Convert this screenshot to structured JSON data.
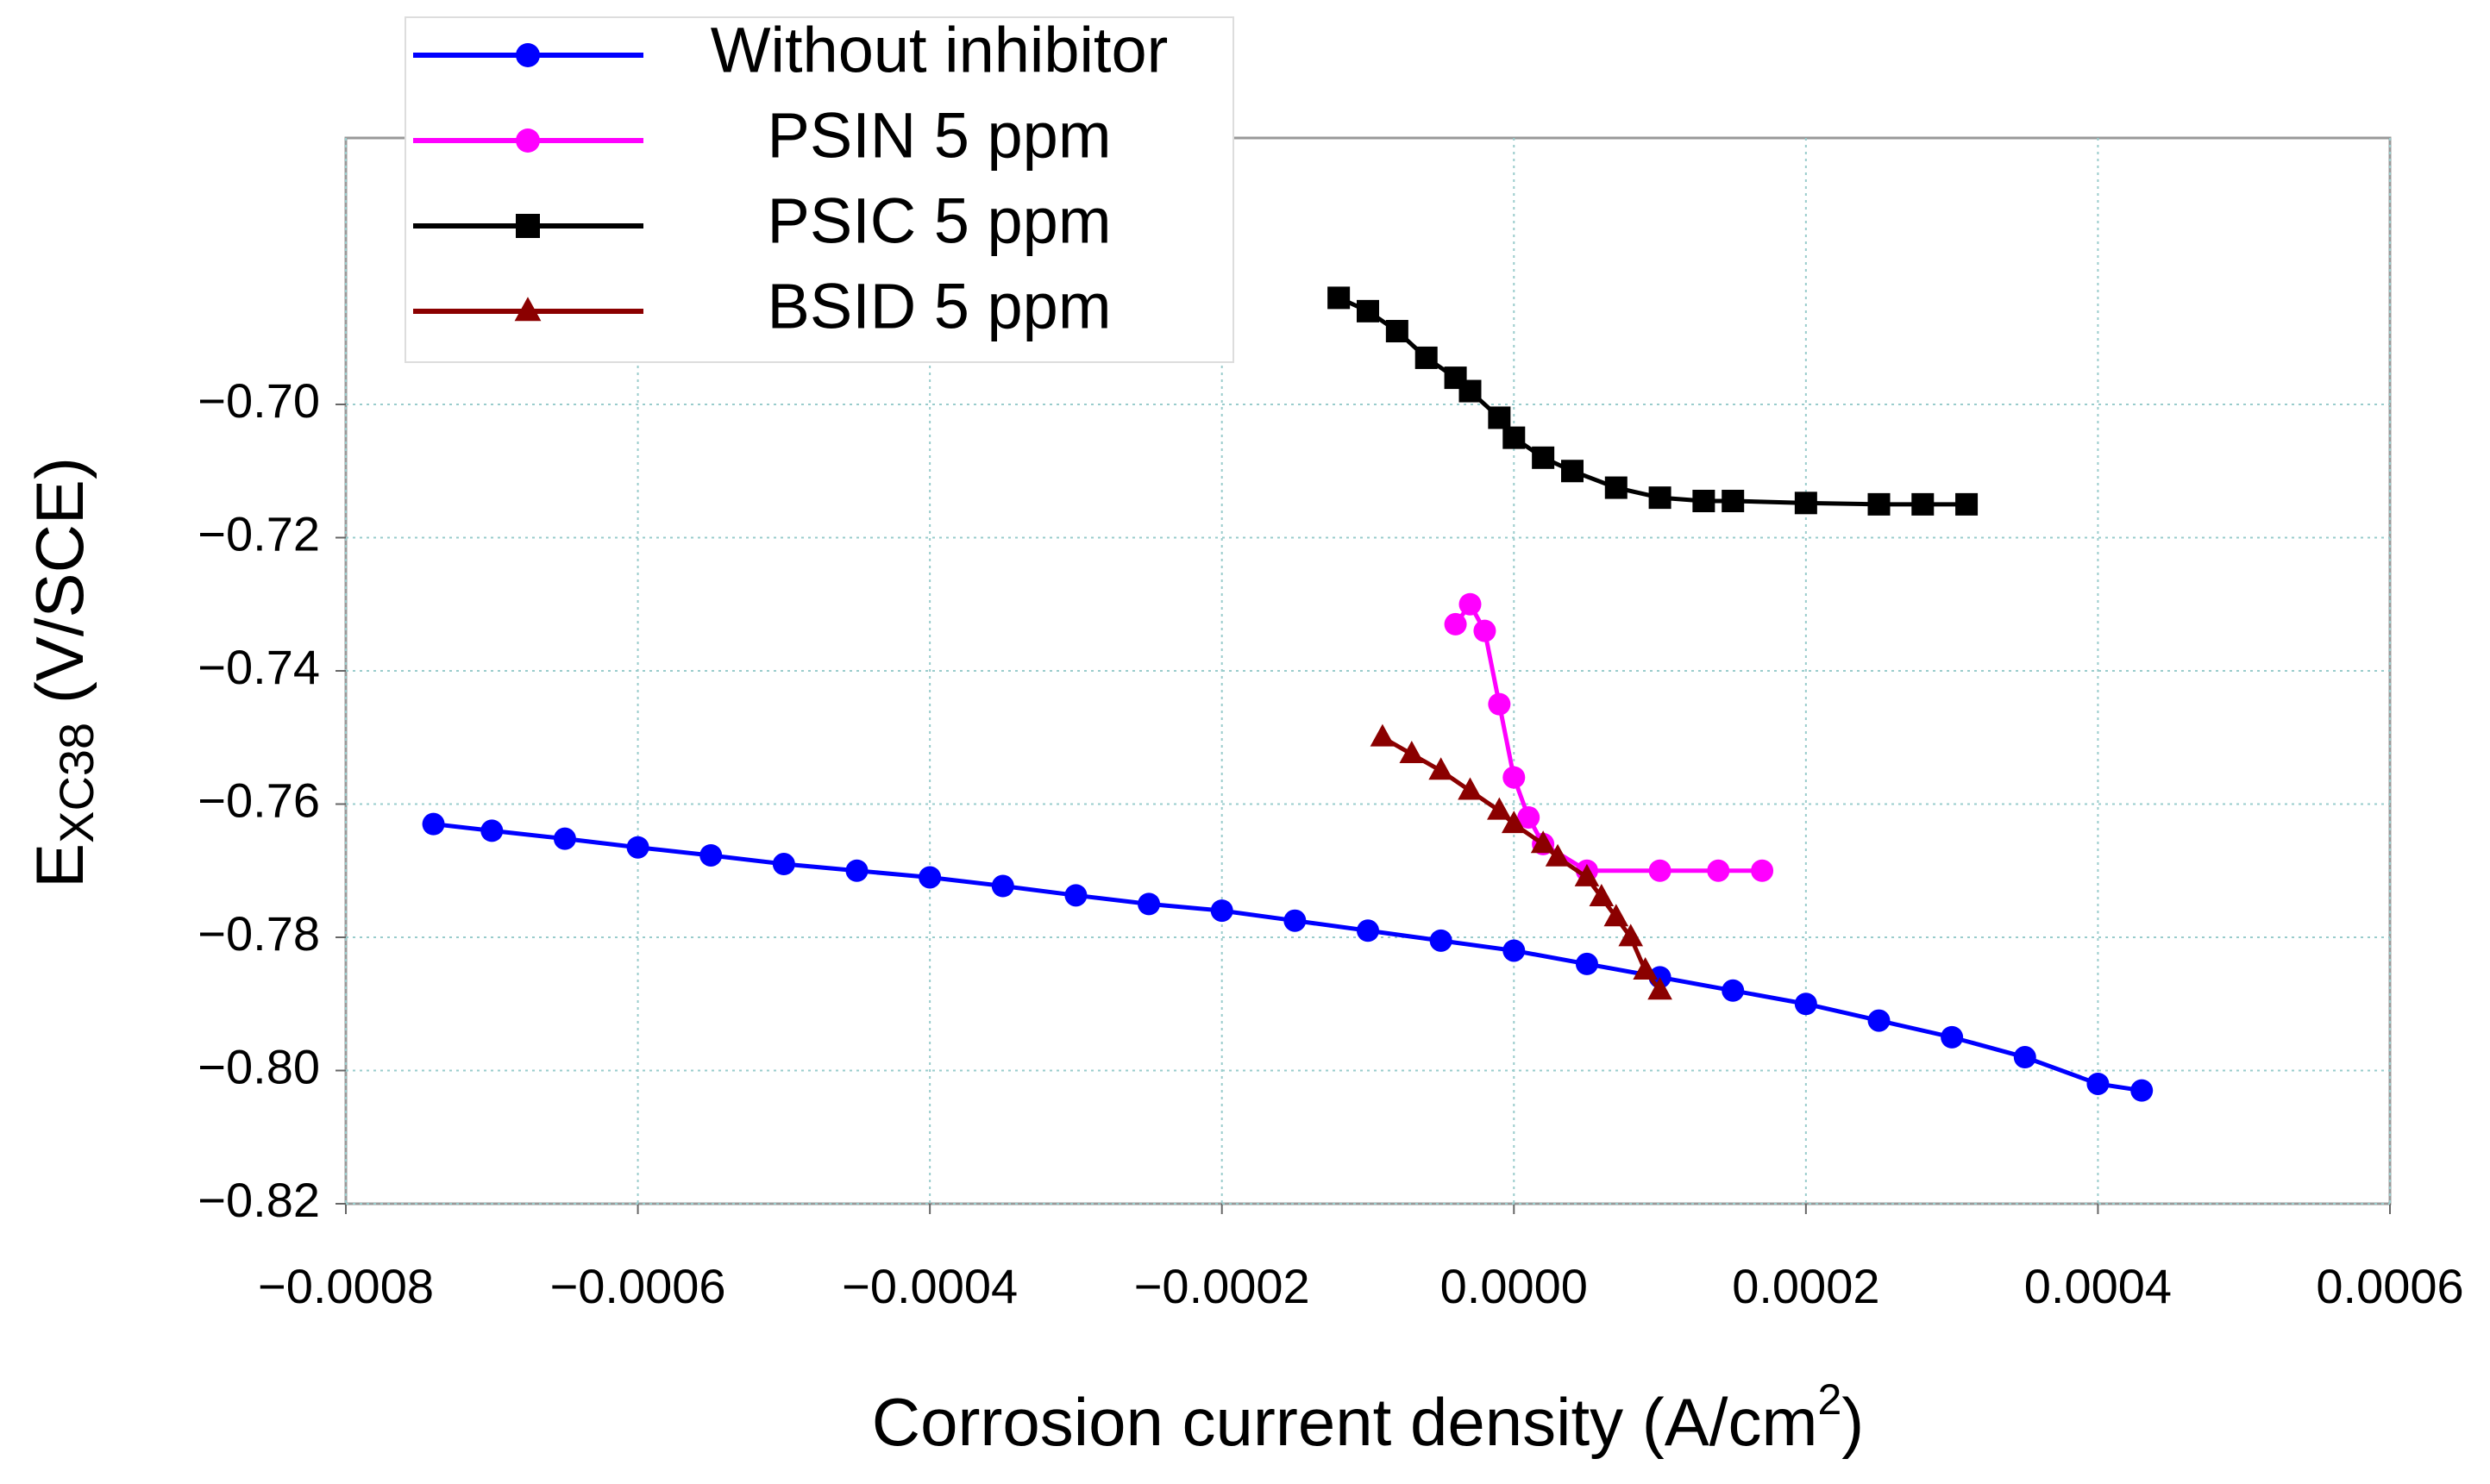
{
  "chart_data": {
    "type": "scatter",
    "x_label": {
      "main": "Corrosion current density (A/cm",
      "sup": "2",
      "end": ")"
    },
    "y_label": {
      "main": "E",
      "sub": "XC38",
      "rest": " (V/SCE)"
    },
    "xlim": [
      -0.0008,
      0.0006
    ],
    "ylim": [
      -0.82,
      -0.66
    ],
    "xticks": [
      {
        "value": -0.0008,
        "label": "−0.0008"
      },
      {
        "value": -0.0006,
        "label": "−0.0006"
      },
      {
        "value": -0.0004,
        "label": "−0.0004"
      },
      {
        "value": -0.0002,
        "label": "−0.0002"
      },
      {
        "value": 0,
        "label": "0.0000"
      },
      {
        "value": 0.0002,
        "label": "0.0002"
      },
      {
        "value": 0.0004,
        "label": "0.0004"
      },
      {
        "value": 0.0006,
        "label": "0.0006"
      }
    ],
    "yticks": [
      {
        "value": -0.7,
        "label": "−0.70"
      },
      {
        "value": -0.72,
        "label": "−0.72"
      },
      {
        "value": -0.74,
        "label": "−0.74"
      },
      {
        "value": -0.76,
        "label": "−0.76"
      },
      {
        "value": -0.78,
        "label": "−0.78"
      },
      {
        "value": -0.8,
        "label": "−0.80"
      },
      {
        "value": -0.82,
        "label": "−0.82"
      }
    ],
    "grid": true,
    "legend": "top-left",
    "series": [
      {
        "name": "Without inhibitor",
        "color": "#0000ff",
        "marker": "circle",
        "x": [
          -0.00074,
          -0.0007,
          -0.00065,
          -0.0006,
          -0.00055,
          -0.0005,
          -0.00045,
          -0.0004,
          -0.00035,
          -0.0003,
          -0.00025,
          -0.0002,
          -0.00015,
          -0.0001,
          -5e-05,
          0,
          5e-05,
          0.0001,
          0.00015,
          0.0002,
          0.00025,
          0.0003,
          0.00035,
          0.0004,
          0.00043
        ],
        "values": [
          -0.763,
          -0.764,
          -0.7652,
          -0.7665,
          -0.7677,
          -0.769,
          -0.77,
          -0.771,
          -0.7723,
          -0.7737,
          -0.775,
          -0.776,
          -0.7775,
          -0.779,
          -0.7805,
          -0.782,
          -0.784,
          -0.786,
          -0.788,
          -0.79,
          -0.7925,
          -0.795,
          -0.798,
          -0.802,
          -0.803
        ]
      },
      {
        "name": "PSIN 5 ppm",
        "color": "#ff00ff",
        "marker": "circle",
        "x": [
          -4e-05,
          -3e-05,
          -2e-05,
          -1e-05,
          0,
          1e-05,
          2e-05,
          5e-05,
          0.0001,
          0.00014,
          0.00017
        ],
        "values": [
          -0.733,
          -0.73,
          -0.734,
          -0.745,
          -0.756,
          -0.762,
          -0.766,
          -0.77,
          -0.77,
          -0.77,
          -0.77
        ]
      },
      {
        "name": "PSIC 5 ppm",
        "color": "#000000",
        "marker": "square",
        "x": [
          -0.00012,
          -0.0001,
          -8e-05,
          -6e-05,
          -4e-05,
          -3e-05,
          -1e-05,
          0,
          2e-05,
          4e-05,
          7e-05,
          0.0001,
          0.00013,
          0.00015,
          0.0002,
          0.00025,
          0.00028,
          0.00031
        ],
        "values": [
          -0.684,
          -0.686,
          -0.689,
          -0.693,
          -0.696,
          -0.698,
          -0.702,
          -0.705,
          -0.708,
          -0.71,
          -0.7125,
          -0.714,
          -0.7145,
          -0.7145,
          -0.7148,
          -0.715,
          -0.715,
          -0.715
        ]
      },
      {
        "name": "BSID 5 ppm",
        "color": "#8b0000",
        "marker": "triangle",
        "x": [
          -9e-05,
          -7e-05,
          -5e-05,
          -3e-05,
          -1e-05,
          0,
          2e-05,
          3e-05,
          5e-05,
          6e-05,
          7e-05,
          8e-05,
          9e-05,
          0.0001
        ],
        "values": [
          -0.75,
          -0.7525,
          -0.755,
          -0.758,
          -0.761,
          -0.763,
          -0.766,
          -0.768,
          -0.771,
          -0.774,
          -0.777,
          -0.78,
          -0.785,
          -0.788
        ]
      }
    ]
  }
}
